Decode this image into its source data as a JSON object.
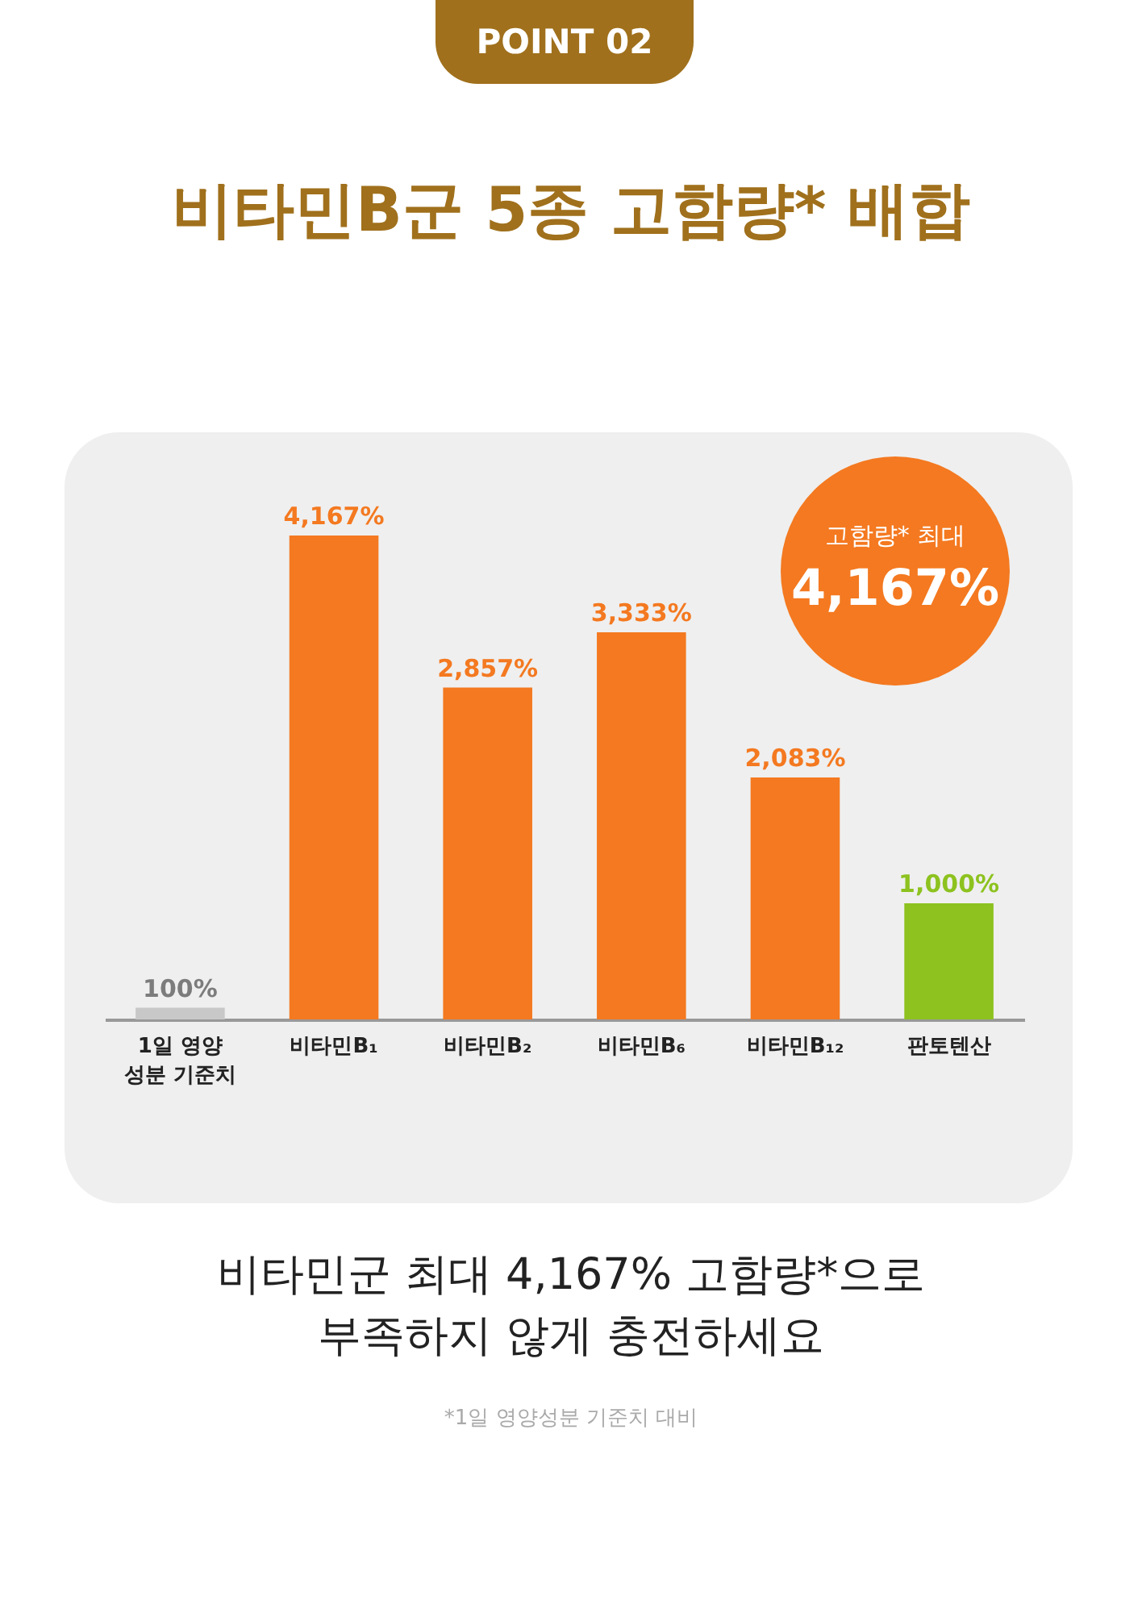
{
  "chart_data": {
    "type": "bar",
    "title": "비타민B군 5종 고함량* 배합",
    "categories": [
      "1일 영양\n성분 기준치",
      "비타민B₁",
      "비타민B₂",
      "비타민B₆",
      "비타민B₁₂",
      "판토텐산"
    ],
    "values": [
      100,
      4167,
      2857,
      3333,
      2083,
      1000
    ],
    "colors": [
      "#c8c8c8",
      "#f47920",
      "#f47920",
      "#f47920",
      "#f47920",
      "#8dc21f"
    ],
    "value_labels": [
      "100%",
      "4,167%",
      "2,857%",
      "3,333%",
      "2,083%",
      "1,000%"
    ],
    "grid": false,
    "annotations": [
      "POINT 02",
      "고함량* 최대",
      "4,167%",
      "비타민군 최대 4,167% 고함량*으로",
      "부족하지 않게 충전하세요",
      "*1일 영양성분 기준치 대비"
    ]
  }
}
